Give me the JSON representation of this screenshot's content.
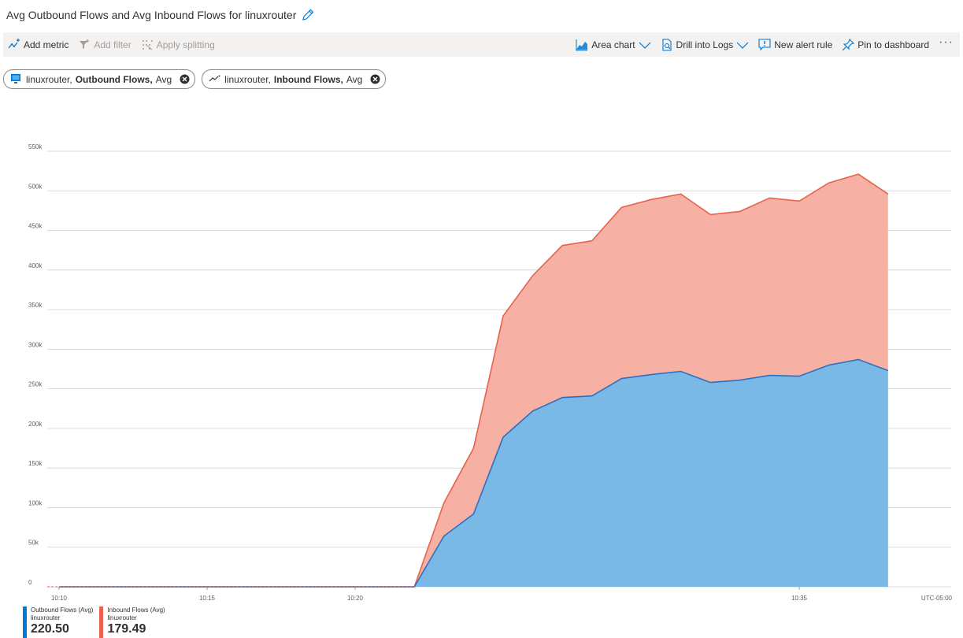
{
  "header": {
    "title": "Avg Outbound Flows and Avg Inbound Flows for linuxrouter"
  },
  "toolbar": {
    "add_metric": "Add metric",
    "add_filter": "Add filter",
    "apply_splitting": "Apply splitting",
    "chart_type": "Area chart",
    "drill_logs": "Drill into Logs",
    "new_alert": "New alert rule",
    "pin": "Pin to dashboard",
    "more": "···"
  },
  "pills": [
    {
      "resource": "linuxrouter,",
      "metric": "Outbound Flows,",
      "agg": "Avg"
    },
    {
      "resource": "linuxrouter,",
      "metric": "Inbound Flows,",
      "agg": "Avg"
    }
  ],
  "legend": [
    {
      "name": "Outbound Flows (Avg)",
      "resource": "linuxrouter",
      "value": "220.50",
      "color": "#0078d4"
    },
    {
      "name": "Inbound Flows (Avg)",
      "resource": "linuxrouter",
      "value": "179.49",
      "color": "#e8624c"
    }
  ],
  "chart_data": {
    "type": "area",
    "stacked": true,
    "y_ticks": [
      "0",
      "50k",
      "100k",
      "150k",
      "200k",
      "250k",
      "300k",
      "350k",
      "400k",
      "450k",
      "500k",
      "550k"
    ],
    "ylim": [
      0,
      550000
    ],
    "x_ticks": [
      "10:10",
      "10:15",
      "10:20",
      "10:35"
    ],
    "timezone": "UTC-05:00",
    "grid": true,
    "x": [
      "10:10",
      "10:11",
      "10:12",
      "10:13",
      "10:14",
      "10:15",
      "10:16",
      "10:17",
      "10:18",
      "10:19",
      "10:20",
      "10:21",
      "10:22",
      "10:23",
      "10:24",
      "10:25",
      "10:26",
      "10:27",
      "10:28",
      "10:29",
      "10:30",
      "10:31",
      "10:32",
      "10:33",
      "10:34",
      "10:35",
      "10:36",
      "10:37",
      "10:38"
    ],
    "series": [
      {
        "name": "Outbound Flows (Avg)",
        "color": "#0078d4",
        "values": [
          0,
          0,
          0,
          0,
          0,
          0,
          0,
          0,
          0,
          0,
          0,
          0,
          0,
          64000,
          92000,
          189000,
          222000,
          239000,
          241000,
          263000,
          268000,
          272000,
          258000,
          261000,
          267000,
          266000,
          280000,
          287000,
          273000
        ]
      },
      {
        "name": "Inbound Flows (Avg)",
        "color": "#e8624c",
        "values": [
          0,
          0,
          0,
          0,
          0,
          0,
          0,
          0,
          0,
          0,
          0,
          0,
          0,
          42000,
          83000,
          153000,
          171000,
          192000,
          196000,
          216000,
          221000,
          224000,
          212000,
          213000,
          224000,
          221000,
          230000,
          234000,
          223000
        ]
      }
    ]
  }
}
